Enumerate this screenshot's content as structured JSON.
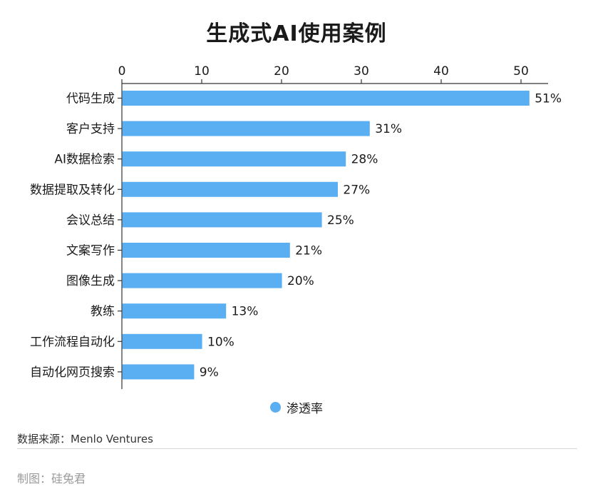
{
  "title": "生成式AI使用案例",
  "legend": {
    "label": "渗透率"
  },
  "source": "数据来源：Menlo Ventures",
  "credit": "制图：硅兔君",
  "colors": {
    "bar": "#5aaef2",
    "axis": "#333333",
    "text": "#1a1a1a"
  },
  "chart_data": {
    "type": "bar",
    "orientation": "horizontal",
    "categories": [
      "代码生成",
      "客户支持",
      "AI数据检索",
      "数据提取及转化",
      "会议总结",
      "文案写作",
      "图像生成",
      "教练",
      "工作流程自动化",
      "自动化网页搜索"
    ],
    "series": [
      {
        "name": "渗透率",
        "values": [
          51,
          31,
          28,
          27,
          25,
          21,
          20,
          13,
          10,
          9
        ]
      }
    ],
    "data_labels": [
      "51%",
      "31%",
      "28%",
      "27%",
      "25%",
      "21%",
      "20%",
      "13%",
      "10%",
      "9%"
    ],
    "xticks": [
      0,
      10,
      20,
      30,
      40,
      50
    ],
    "xlim": [
      0,
      53.5
    ],
    "xaxis_position": "top",
    "grid": false,
    "legend_position": "bottom-center"
  }
}
